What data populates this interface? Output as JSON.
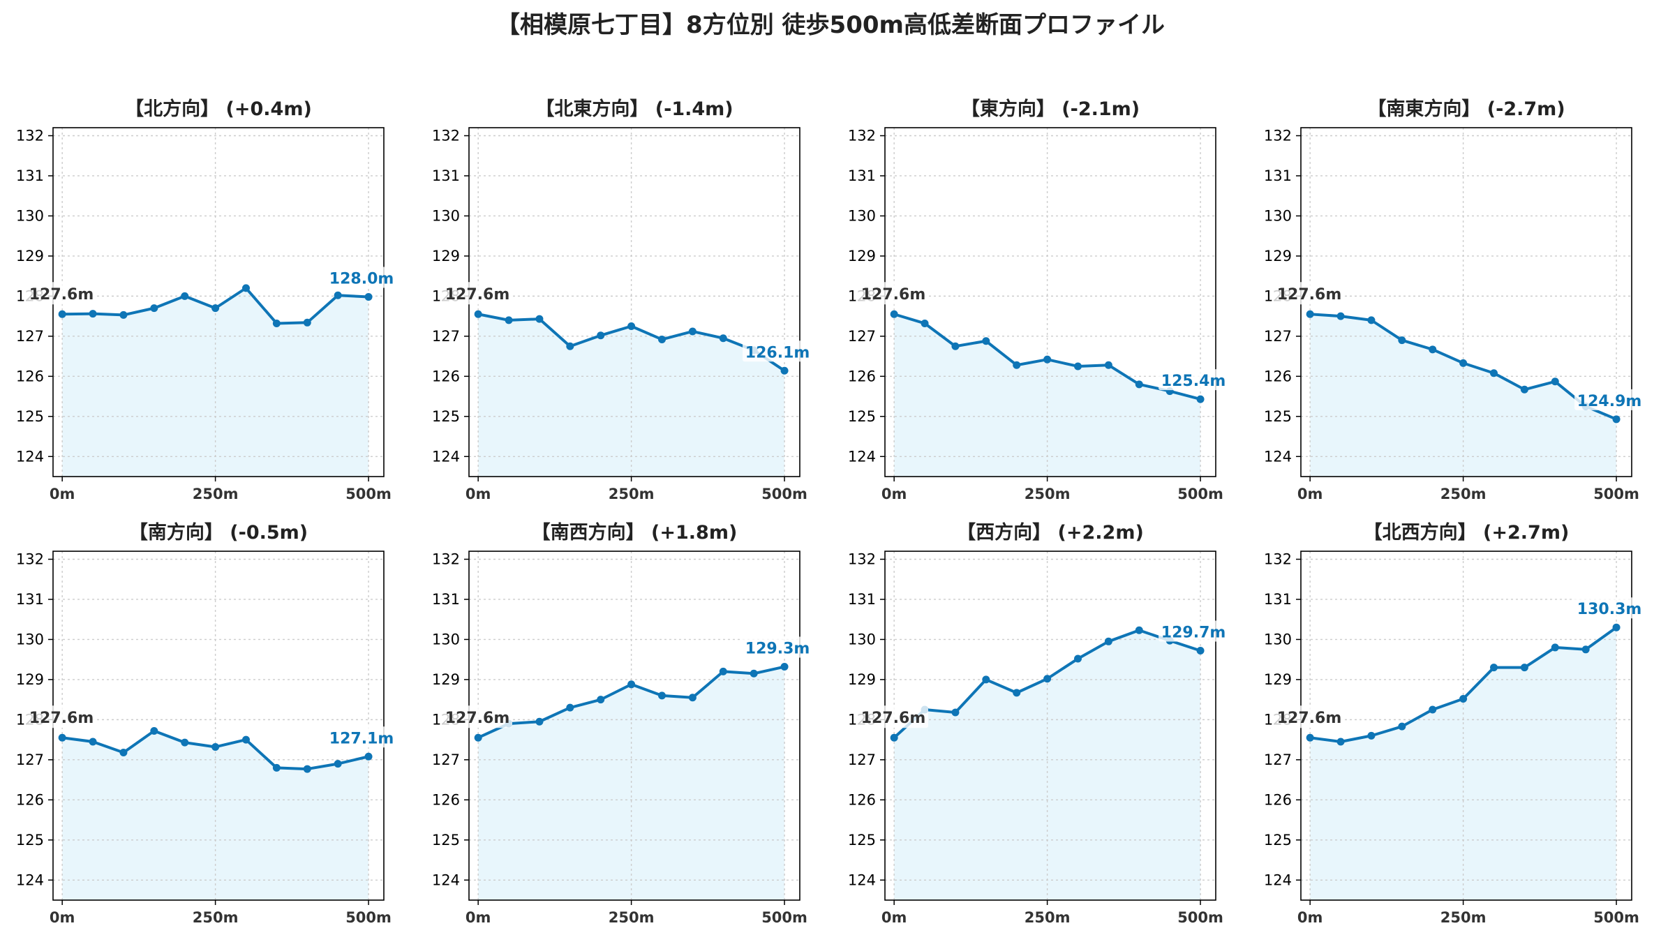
{
  "figure": {
    "title": "【相模原七丁目】8方位別 徒歩500m高低差断面プロファイル"
  },
  "colors": {
    "line": "#0e75b6",
    "fill": "#e8f6fc",
    "grid": "#cccccc",
    "start_label": "#333333",
    "end_label": "#0e75b6"
  },
  "chart_data": [
    {
      "type": "area",
      "title": "【北方向】 (+0.4m)",
      "x": [
        0,
        50,
        100,
        150,
        200,
        250,
        300,
        350,
        400,
        450,
        500
      ],
      "y": [
        127.55,
        127.56,
        127.53,
        127.7,
        128.0,
        127.7,
        128.2,
        127.32,
        127.34,
        128.02,
        127.98
      ],
      "ylim": [
        123.5,
        132.2
      ],
      "yticks": [
        124,
        125,
        126,
        127,
        128,
        129,
        130,
        131,
        132
      ],
      "xticks": [
        "0m",
        "250m",
        "500m"
      ],
      "start_label": "127.6m",
      "end_label": "128.0m",
      "grid": true
    },
    {
      "type": "area",
      "title": "【北東方向】 (-1.4m)",
      "x": [
        0,
        50,
        100,
        150,
        200,
        250,
        300,
        350,
        400,
        450,
        500
      ],
      "y": [
        127.55,
        127.4,
        127.43,
        126.75,
        127.02,
        127.25,
        126.92,
        127.12,
        126.95,
        126.65,
        126.14
      ],
      "ylim": [
        123.5,
        132.2
      ],
      "yticks": [
        124,
        125,
        126,
        127,
        128,
        129,
        130,
        131,
        132
      ],
      "xticks": [
        "0m",
        "250m",
        "500m"
      ],
      "start_label": "127.6m",
      "end_label": "126.1m",
      "grid": true
    },
    {
      "type": "area",
      "title": "【東方向】 (-2.1m)",
      "x": [
        0,
        50,
        100,
        150,
        200,
        250,
        300,
        350,
        400,
        450,
        500
      ],
      "y": [
        127.55,
        127.32,
        126.75,
        126.88,
        126.28,
        126.42,
        126.25,
        126.28,
        125.8,
        125.63,
        125.43
      ],
      "ylim": [
        123.5,
        132.2
      ],
      "yticks": [
        124,
        125,
        126,
        127,
        128,
        129,
        130,
        131,
        132
      ],
      "xticks": [
        "0m",
        "250m",
        "500m"
      ],
      "start_label": "127.6m",
      "end_label": "125.4m",
      "grid": true
    },
    {
      "type": "area",
      "title": "【南東方向】 (-2.7m)",
      "x": [
        0,
        50,
        100,
        150,
        200,
        250,
        300,
        350,
        400,
        450,
        500
      ],
      "y": [
        127.55,
        127.5,
        127.4,
        126.9,
        126.67,
        126.33,
        126.08,
        125.67,
        125.87,
        125.25,
        124.93
      ],
      "ylim": [
        123.5,
        132.2
      ],
      "yticks": [
        124,
        125,
        126,
        127,
        128,
        129,
        130,
        131,
        132
      ],
      "xticks": [
        "0m",
        "250m",
        "500m"
      ],
      "start_label": "127.6m",
      "end_label": "124.9m",
      "grid": true
    },
    {
      "type": "area",
      "title": "【南方向】 (-0.5m)",
      "x": [
        0,
        50,
        100,
        150,
        200,
        250,
        300,
        350,
        400,
        450,
        500
      ],
      "y": [
        127.55,
        127.45,
        127.18,
        127.72,
        127.43,
        127.32,
        127.5,
        126.8,
        126.77,
        126.9,
        127.08
      ],
      "ylim": [
        123.5,
        132.2
      ],
      "yticks": [
        124,
        125,
        126,
        127,
        128,
        129,
        130,
        131,
        132
      ],
      "xticks": [
        "0m",
        "250m",
        "500m"
      ],
      "start_label": "127.6m",
      "end_label": "127.1m",
      "grid": true
    },
    {
      "type": "area",
      "title": "【南西方向】 (+1.8m)",
      "x": [
        0,
        50,
        100,
        150,
        200,
        250,
        300,
        350,
        400,
        450,
        500
      ],
      "y": [
        127.55,
        127.9,
        127.95,
        128.3,
        128.5,
        128.88,
        128.6,
        128.55,
        129.2,
        129.15,
        129.32
      ],
      "ylim": [
        123.5,
        132.2
      ],
      "yticks": [
        124,
        125,
        126,
        127,
        128,
        129,
        130,
        131,
        132
      ],
      "xticks": [
        "0m",
        "250m",
        "500m"
      ],
      "start_label": "127.6m",
      "end_label": "129.3m",
      "grid": true
    },
    {
      "type": "area",
      "title": "【西方向】 (+2.2m)",
      "x": [
        0,
        50,
        100,
        150,
        200,
        250,
        300,
        350,
        400,
        450,
        500
      ],
      "y": [
        127.55,
        128.25,
        128.18,
        129.0,
        128.67,
        129.02,
        129.52,
        129.95,
        130.23,
        129.97,
        129.72
      ],
      "ylim": [
        123.5,
        132.2
      ],
      "yticks": [
        124,
        125,
        126,
        127,
        128,
        129,
        130,
        131,
        132
      ],
      "xticks": [
        "0m",
        "250m",
        "500m"
      ],
      "start_label": "127.6m",
      "end_label": "129.7m",
      "grid": true
    },
    {
      "type": "area",
      "title": "【北西方向】 (+2.7m)",
      "x": [
        0,
        50,
        100,
        150,
        200,
        250,
        300,
        350,
        400,
        450,
        500
      ],
      "y": [
        127.55,
        127.45,
        127.6,
        127.83,
        128.25,
        128.52,
        129.3,
        129.3,
        129.8,
        129.75,
        130.3
      ],
      "ylim": [
        123.5,
        132.2
      ],
      "yticks": [
        124,
        125,
        126,
        127,
        128,
        129,
        130,
        131,
        132
      ],
      "xticks": [
        "0m",
        "250m",
        "500m"
      ],
      "start_label": "127.6m",
      "end_label": "130.3m",
      "grid": true
    }
  ]
}
